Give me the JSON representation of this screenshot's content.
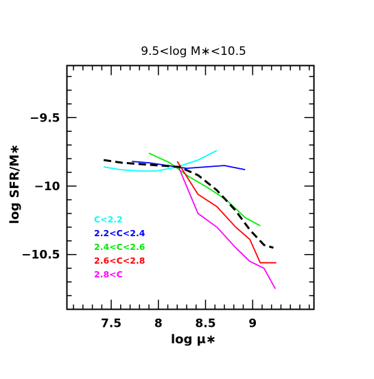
{
  "chart_data": {
    "type": "line",
    "title": "9.5<log M∗<10.5",
    "xlabel": "log μ∗",
    "ylabel": "log SFR/M∗",
    "xlim": [
      7.03,
      9.65
    ],
    "ylim": [
      -10.9,
      -9.12
    ],
    "xticks": {
      "values": [
        7.5,
        8,
        8.5,
        9
      ],
      "labels": [
        "7.5",
        "8",
        "8.5",
        "9"
      ]
    },
    "yticks": {
      "values": [
        -9.5,
        -10,
        -10.5
      ],
      "labels": [
        "−9.5",
        "−10",
        "−10.5"
      ]
    },
    "grid": false,
    "legend_position": "lower-left",
    "series": [
      {
        "name": "C<2.2",
        "color": "#00ffff",
        "dashed": false,
        "x": [
          7.42,
          7.6,
          7.8,
          7.98,
          8.2,
          8.42,
          8.62
        ],
        "y": [
          -9.86,
          -9.88,
          -9.89,
          -9.89,
          -9.86,
          -9.81,
          -9.74
        ]
      },
      {
        "name": "2.2<C<2.4",
        "color": "#0000ff",
        "dashed": false,
        "x": [
          7.72,
          7.9,
          8.1,
          8.3,
          8.5,
          8.7,
          8.92
        ],
        "y": [
          -9.82,
          -9.83,
          -9.85,
          -9.87,
          -9.86,
          -9.85,
          -9.88
        ]
      },
      {
        "name": "2.4<C<2.6",
        "color": "#00ee00",
        "dashed": false,
        "x": [
          7.9,
          8.12,
          8.32,
          8.52,
          8.72,
          8.92,
          9.08
        ],
        "y": [
          -9.76,
          -9.83,
          -9.93,
          -10.01,
          -10.1,
          -10.23,
          -10.29
        ]
      },
      {
        "name": "2.6<C<2.8",
        "color": "#ff0000",
        "dashed": false,
        "x": [
          8.2,
          8.42,
          8.62,
          8.82,
          8.97,
          9.08,
          9.25
        ],
        "y": [
          -9.82,
          -10.06,
          -10.15,
          -10.3,
          -10.39,
          -10.56,
          -10.56
        ]
      },
      {
        "name": "2.8<C",
        "color": "#ff00ff",
        "dashed": false,
        "x": [
          8.22,
          8.42,
          8.62,
          8.82,
          8.97,
          9.12,
          9.24
        ],
        "y": [
          -9.87,
          -10.2,
          -10.3,
          -10.45,
          -10.55,
          -10.6,
          -10.75
        ]
      },
      {
        "name": "",
        "color": "#000000",
        "dashed": true,
        "x": [
          7.42,
          7.62,
          7.82,
          8.02,
          8.22,
          8.42,
          8.62,
          8.82,
          8.97,
          9.12,
          9.22
        ],
        "y": [
          -9.81,
          -9.83,
          -9.84,
          -9.85,
          -9.86,
          -9.92,
          -10.03,
          -10.18,
          -10.32,
          -10.43,
          -10.45
        ]
      }
    ]
  }
}
